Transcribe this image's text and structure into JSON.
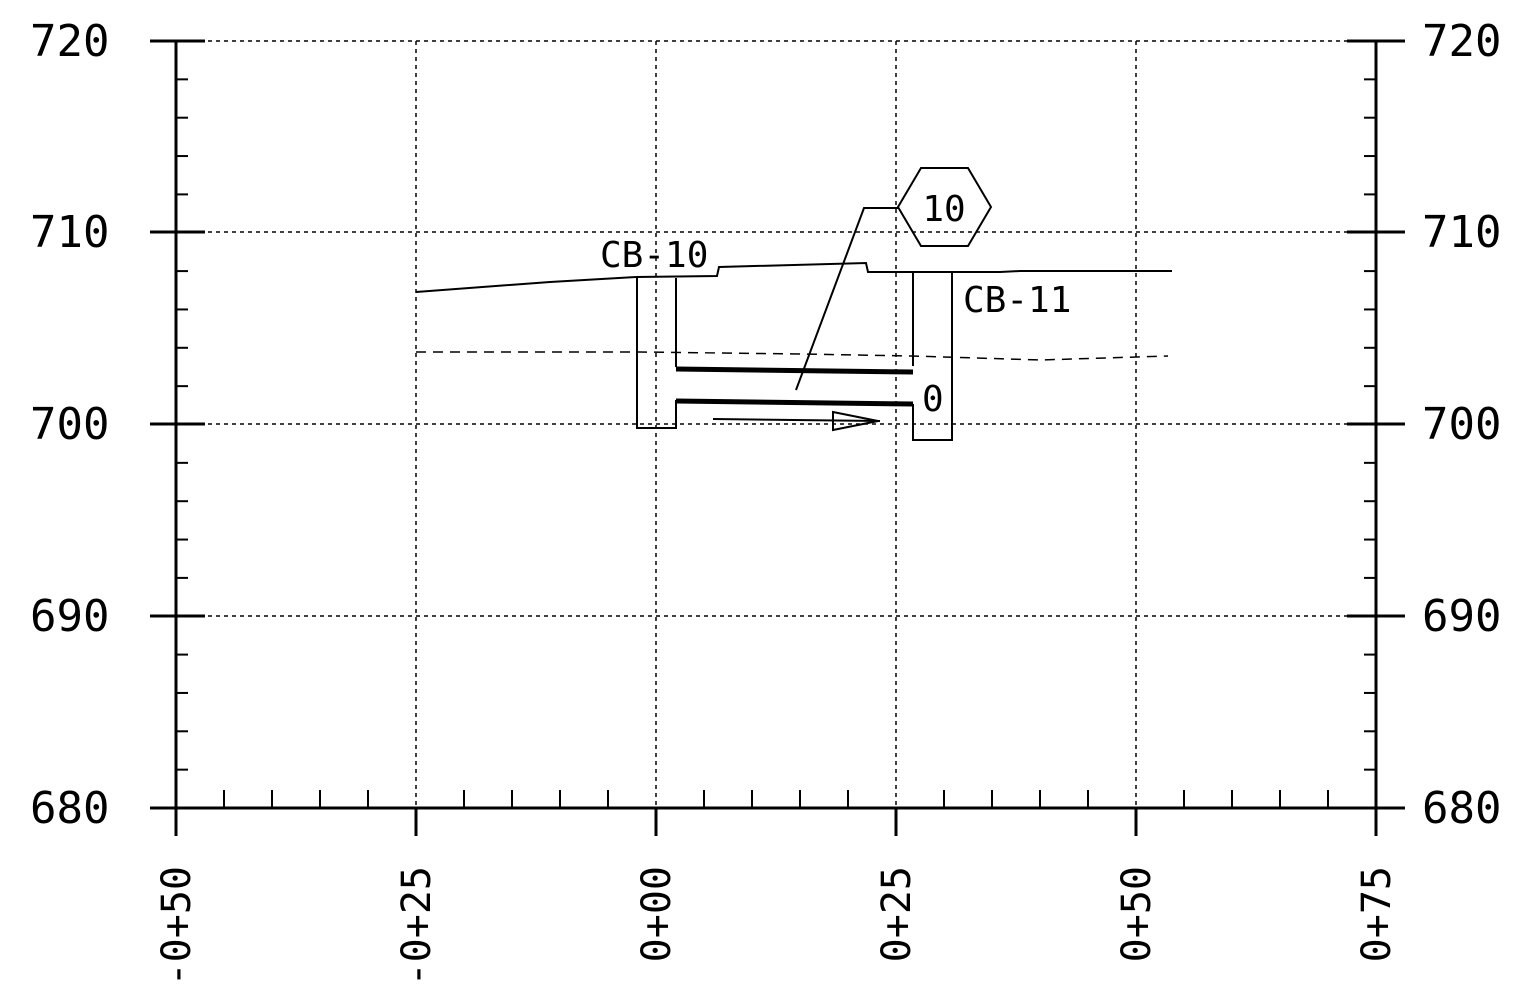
{
  "profile": {
    "elevation_labels": [
      "720",
      "710",
      "700",
      "690",
      "680"
    ],
    "station_labels": [
      "-0+50",
      "-0+25",
      "0+00",
      "0+25",
      "0+50",
      "0+75"
    ],
    "structures": [
      {
        "id": "cb10",
        "label": "CB-10"
      },
      {
        "id": "cb11",
        "label": "CB-11"
      }
    ],
    "pipe_callout": "10",
    "pipe_note": "0"
  }
}
